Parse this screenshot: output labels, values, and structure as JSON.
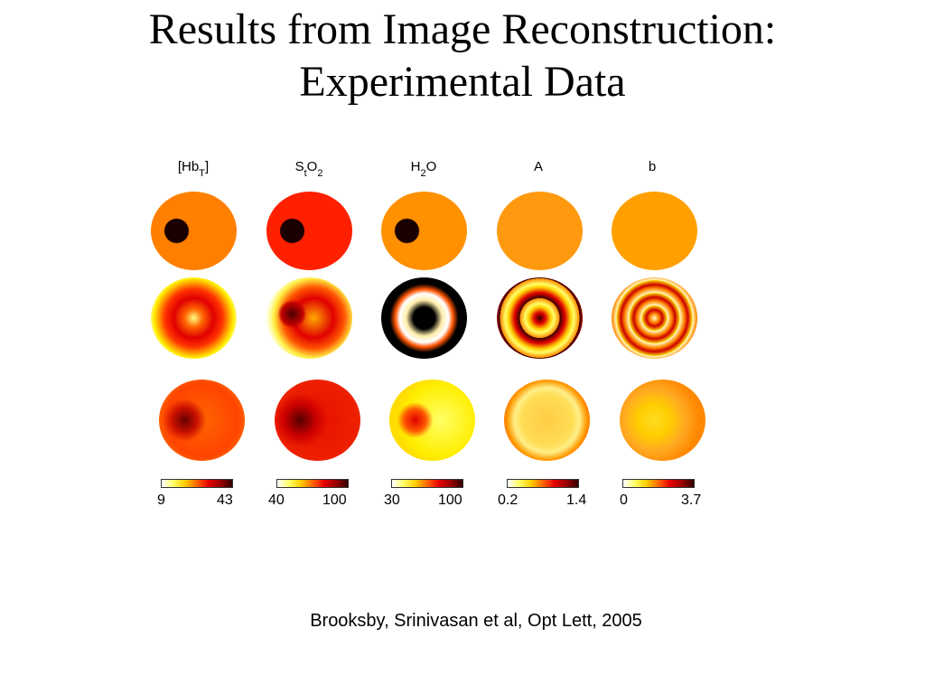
{
  "slide": {
    "title_line1": "Results from Image Reconstruction:",
    "title_line2": "Experimental Data"
  },
  "figure": {
    "columns": [
      {
        "label": "[Hb",
        "label_sub": "T",
        "label_tail": "]",
        "cbar_min": "9",
        "cbar_max": "43"
      },
      {
        "label": "S",
        "label_sub": "t",
        "label_tail": "O",
        "label_sub2": "2",
        "cbar_min": "40",
        "cbar_max": "100"
      },
      {
        "label": "H",
        "label_sub": "2",
        "label_tail": "O",
        "cbar_min": "30",
        "cbar_max": "100"
      },
      {
        "label": "A",
        "cbar_min": "0.2",
        "cbar_max": "1.4"
      },
      {
        "label": "b",
        "cbar_min": "0",
        "cbar_max": "3.7"
      }
    ],
    "colormap": [
      "#ffffff",
      "#ffff66",
      "#ffcc00",
      "#ff6600",
      "#e60000",
      "#990000",
      "#330000"
    ]
  },
  "citation": "Brooksby, Srinivasan et al, Opt Lett, 2005"
}
